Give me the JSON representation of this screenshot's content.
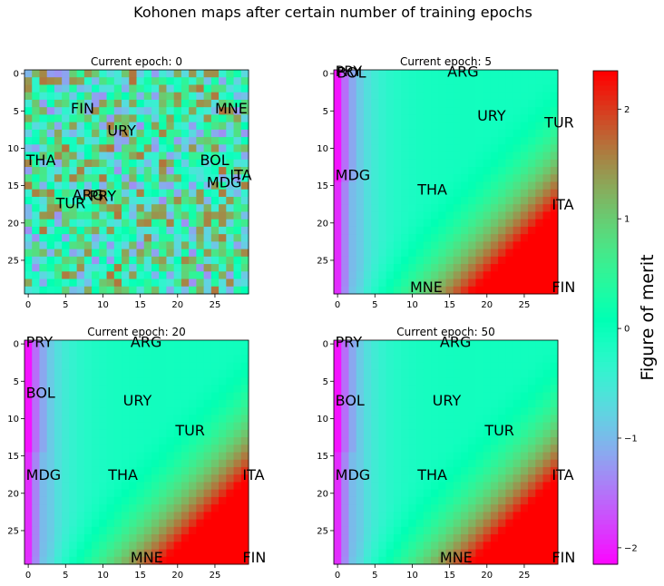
{
  "figure": {
    "title": "Kohonen maps after certain number of training epochs"
  },
  "chart_data": {
    "type": "heatmap",
    "grid_size": 30,
    "x_ticks": [
      0,
      5,
      10,
      15,
      20,
      25
    ],
    "y_ticks": [
      0,
      5,
      10,
      15,
      20,
      25
    ],
    "panels": [
      {
        "title": "Current epoch: 0",
        "pattern": "random",
        "labels": [
          {
            "text": "PRY",
            "x": 8.5,
            "y": 16.3
          },
          {
            "text": "ARG",
            "x": 6.2,
            "y": 16.2
          },
          {
            "text": "TUR",
            "x": 4.0,
            "y": 17.3
          },
          {
            "text": "FIN",
            "x": 6.0,
            "y": 4.6
          },
          {
            "text": "MNE",
            "x": 25.3,
            "y": 4.6
          },
          {
            "text": "URY",
            "x": 10.9,
            "y": 7.6
          },
          {
            "text": "THA",
            "x": 0.0,
            "y": 11.5
          },
          {
            "text": "BOL",
            "x": 23.3,
            "y": 11.5
          },
          {
            "text": "ITA",
            "x": 27.3,
            "y": 13.5
          },
          {
            "text": "MDG",
            "x": 24.2,
            "y": 14.5
          }
        ]
      },
      {
        "title": "Current epoch: 5",
        "pattern": "gradient",
        "labels": [
          {
            "text": "PRY",
            "x": 0.0,
            "y": -0.4
          },
          {
            "text": "BOL",
            "x": 0.2,
            "y": -0.2
          },
          {
            "text": "ARG",
            "x": 15.0,
            "y": -0.3
          },
          {
            "text": "URY",
            "x": 19.0,
            "y": 5.6
          },
          {
            "text": "TUR",
            "x": 28.0,
            "y": 6.5
          },
          {
            "text": "MDG",
            "x": 0.0,
            "y": 13.5
          },
          {
            "text": "THA",
            "x": 11.0,
            "y": 15.5
          },
          {
            "text": "ITA",
            "x": 29.0,
            "y": 17.5
          },
          {
            "text": "MNE",
            "x": 10.0,
            "y": 28.5
          },
          {
            "text": "FIN",
            "x": 29.0,
            "y": 28.5
          }
        ]
      },
      {
        "title": "Current epoch: 20",
        "pattern": "gradient",
        "labels": [
          {
            "text": "PRY",
            "x": 0.0,
            "y": -0.3
          },
          {
            "text": "ARG",
            "x": 14.0,
            "y": -0.3
          },
          {
            "text": "BOL",
            "x": 0.0,
            "y": 6.5
          },
          {
            "text": "URY",
            "x": 13.0,
            "y": 7.5
          },
          {
            "text": "TUR",
            "x": 20.0,
            "y": 11.5
          },
          {
            "text": "MDG",
            "x": 0.0,
            "y": 17.5
          },
          {
            "text": "THA",
            "x": 11.0,
            "y": 17.5
          },
          {
            "text": "ITA",
            "x": 29.0,
            "y": 17.5
          },
          {
            "text": "MNE",
            "x": 14.0,
            "y": 28.5
          },
          {
            "text": "FIN",
            "x": 29.0,
            "y": 28.5
          }
        ]
      },
      {
        "title": "Current epoch: 50",
        "pattern": "gradient",
        "labels": [
          {
            "text": "PRY",
            "x": 0.0,
            "y": -0.3
          },
          {
            "text": "ARG",
            "x": 14.0,
            "y": -0.3
          },
          {
            "text": "BOL",
            "x": 0.0,
            "y": 7.5
          },
          {
            "text": "URY",
            "x": 13.0,
            "y": 7.5
          },
          {
            "text": "TUR",
            "x": 20.0,
            "y": 11.5
          },
          {
            "text": "MDG",
            "x": 0.0,
            "y": 17.5
          },
          {
            "text": "THA",
            "x": 11.0,
            "y": 17.5
          },
          {
            "text": "ITA",
            "x": 29.0,
            "y": 17.5
          },
          {
            "text": "MNE",
            "x": 14.0,
            "y": 28.5
          },
          {
            "text": "FIN",
            "x": 29.0,
            "y": 28.5
          }
        ]
      }
    ],
    "colorbar": {
      "label": "Figure of merit",
      "range": [
        -2.15,
        2.35
      ],
      "ticks": [
        -2,
        -1,
        0,
        1,
        2
      ],
      "colormap": "rainbow"
    }
  }
}
